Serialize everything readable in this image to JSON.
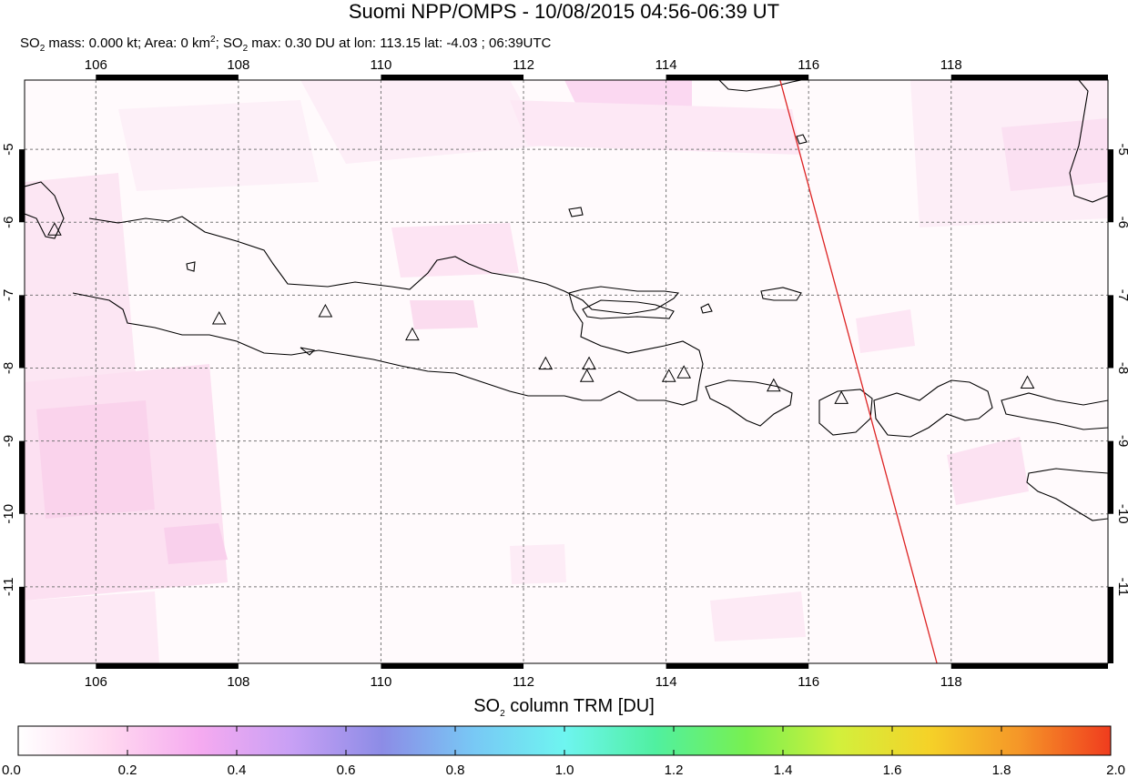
{
  "title": "Suomi NPP/OMPS - 10/08/2015 04:56-06:39 UT",
  "subtitle": {
    "mass_label": "SO",
    "mass_sub": "2",
    "mass_text": " mass: 0.000 kt; Area: 0 km",
    "area_sup": "2",
    "max_label": "; SO",
    "max_sub": "2",
    "max_text": " max: 0.30 DU at lon: 113.15 lat: -4.03 ; 06:39UTC"
  },
  "map": {
    "lon_range": [
      105.0,
      120.2
    ],
    "lat_range": [
      -12.05,
      -4.05
    ],
    "lon_ticks": [
      "106",
      "108",
      "110",
      "112",
      "114",
      "116",
      "118"
    ],
    "lat_ticks": [
      "-5",
      "-6",
      "-7",
      "-8",
      "-9",
      "-10",
      "-11"
    ],
    "lon_values": [
      106,
      108,
      110,
      112,
      114,
      116,
      118
    ],
    "lat_values": [
      -5,
      -6,
      -7,
      -8,
      -9,
      -10,
      -11
    ],
    "swath_edge": [
      [
        115.6,
        -4.05
      ],
      [
        117.8,
        -12.05
      ]
    ],
    "swath_color": "#dd2222",
    "volcanoes": [
      [
        105.42,
        -6.1
      ],
      [
        107.73,
        -7.32
      ],
      [
        109.22,
        -7.22
      ],
      [
        110.44,
        -7.54
      ],
      [
        112.31,
        -7.94
      ],
      [
        112.92,
        -7.94
      ],
      [
        112.89,
        -8.11
      ],
      [
        114.04,
        -8.11
      ],
      [
        114.25,
        -8.06
      ],
      [
        115.51,
        -8.24
      ],
      [
        116.46,
        -8.41
      ],
      [
        119.07,
        -8.2
      ]
    ]
  },
  "colorbar": {
    "title_main": "SO",
    "title_sub": "2",
    "title_rest": " column TRM [DU]",
    "ticks": [
      "0.0",
      "0.2",
      "0.4",
      "0.6",
      "0.8",
      "1.0",
      "1.2",
      "1.4",
      "1.6",
      "1.8",
      "2.0"
    ],
    "range": [
      0.0,
      2.0
    ],
    "colors": [
      "#ffffff",
      "#ffd8f0",
      "#f5aaf0",
      "#c8a0f5",
      "#8c8ce6",
      "#78c8f5",
      "#6ef5f0",
      "#50f0a0",
      "#78f050",
      "#d2f03c",
      "#f5d228",
      "#f59628",
      "#f03c1e"
    ]
  }
}
